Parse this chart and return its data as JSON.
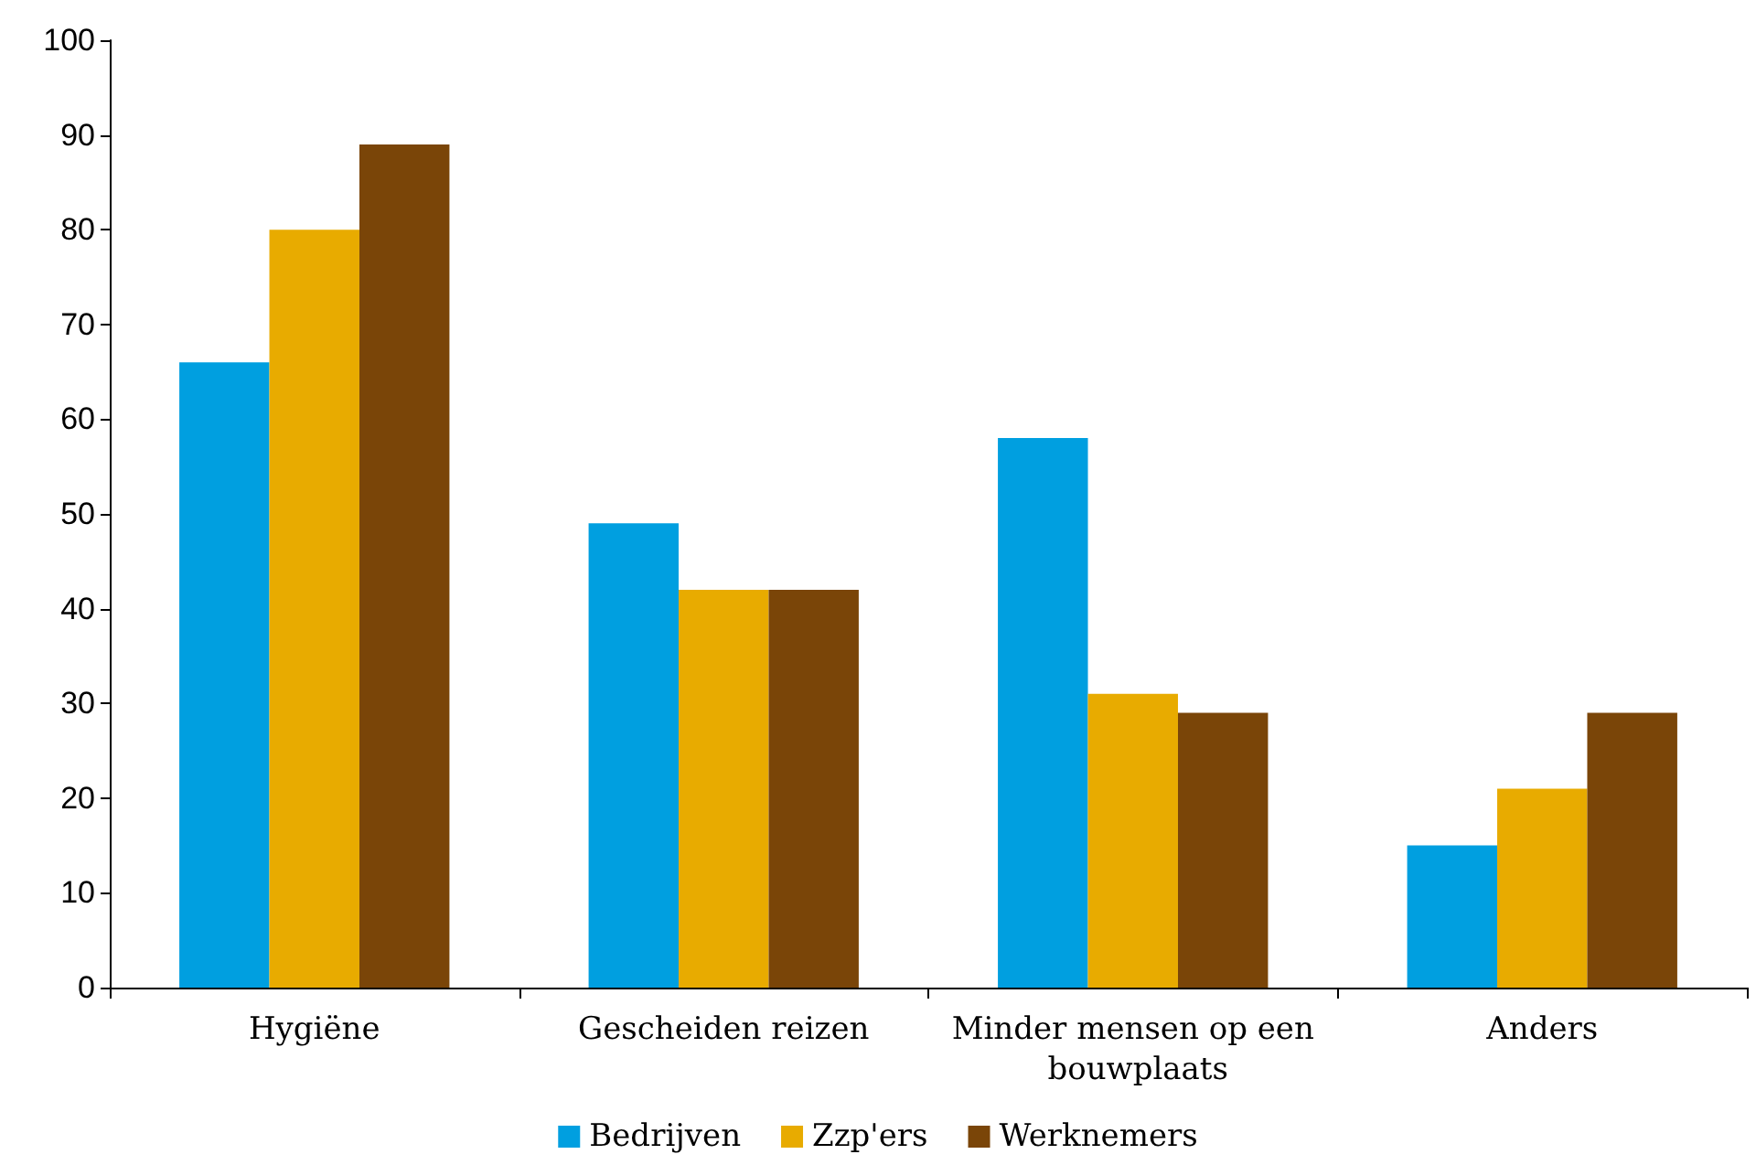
{
  "chart_data": {
    "type": "bar",
    "categories": [
      "Hygiëne",
      "Gescheiden reizen",
      "Minder mensen op een bouwplaats",
      "Anders"
    ],
    "series": [
      {
        "name": "Bedrijven",
        "color": "#009fe0",
        "values": [
          66,
          49,
          58,
          15
        ]
      },
      {
        "name": "Zzp'ers",
        "color": "#e8ab00",
        "values": [
          80,
          42,
          31,
          21
        ]
      },
      {
        "name": "Werknemers",
        "color": "#7a4508",
        "values": [
          89,
          42,
          29,
          29
        ]
      }
    ],
    "ylim": [
      0,
      100
    ],
    "yticks": [
      0,
      10,
      20,
      30,
      40,
      50,
      60,
      70,
      80,
      90,
      100
    ],
    "grid": false,
    "legend": "bottom"
  }
}
